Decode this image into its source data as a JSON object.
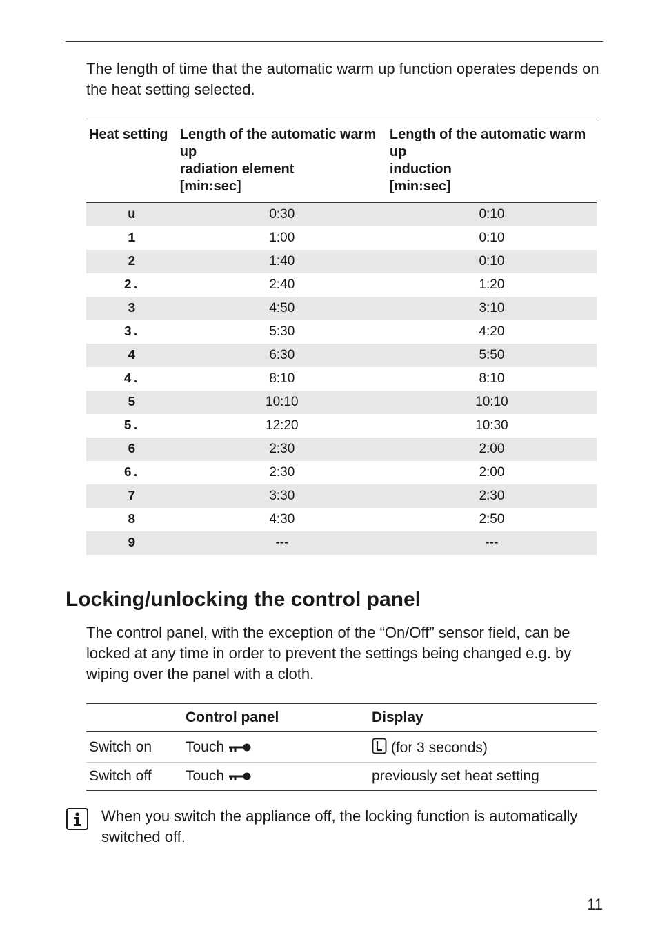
{
  "intro": "The length of time that the automatic warm up function operates depends on the heat setting selected.",
  "warm_table": {
    "columns": [
      "Heat setting",
      "Length of the automatic warm up\nradiation element\n[min:sec]",
      "Length of the automatic warm up\ninduction\n[min:sec]"
    ],
    "rows": [
      {
        "heat": "u",
        "rad": "0:30",
        "ind": "0:10"
      },
      {
        "heat": "1",
        "rad": "1:00",
        "ind": "0:10"
      },
      {
        "heat": "2",
        "rad": "1:40",
        "ind": "0:10"
      },
      {
        "heat": "2.",
        "rad": "2:40",
        "ind": "1:20"
      },
      {
        "heat": "3",
        "rad": "4:50",
        "ind": "3:10"
      },
      {
        "heat": "3.",
        "rad": "5:30",
        "ind": "4:20"
      },
      {
        "heat": "4",
        "rad": "6:30",
        "ind": "5:50"
      },
      {
        "heat": "4.",
        "rad": "8:10",
        "ind": "8:10"
      },
      {
        "heat": "5",
        "rad": "10:10",
        "ind": "10:10"
      },
      {
        "heat": "5.",
        "rad": "12:20",
        "ind": "10:30"
      },
      {
        "heat": "6",
        "rad": "2:30",
        "ind": "2:00"
      },
      {
        "heat": "6.",
        "rad": "2:30",
        "ind": "2:00"
      },
      {
        "heat": "7",
        "rad": "3:30",
        "ind": "2:30"
      },
      {
        "heat": "8",
        "rad": "4:30",
        "ind": "2:50"
      },
      {
        "heat": "9",
        "rad": "---",
        "ind": "---"
      }
    ]
  },
  "section_heading": "Locking/unlocking the control panel",
  "section_body": "The control panel, with the exception of the “On/Off” sensor field, can be locked at any time in order to prevent the settings being changed e.g. by wiping over the panel with a cloth.",
  "lock_table": {
    "columns": [
      "",
      "Control panel",
      "Display"
    ],
    "rows": [
      {
        "action": "Switch on",
        "panel_prefix": "Touch ",
        "display_text": " (for 3 seconds)",
        "show_display_icon": true
      },
      {
        "action": "Switch off",
        "panel_prefix": "Touch ",
        "display_text": "previously set heat setting",
        "show_display_icon": false
      }
    ]
  },
  "note": "When you switch the appliance off, the locking function is automatically switched off.",
  "page_number": "11"
}
